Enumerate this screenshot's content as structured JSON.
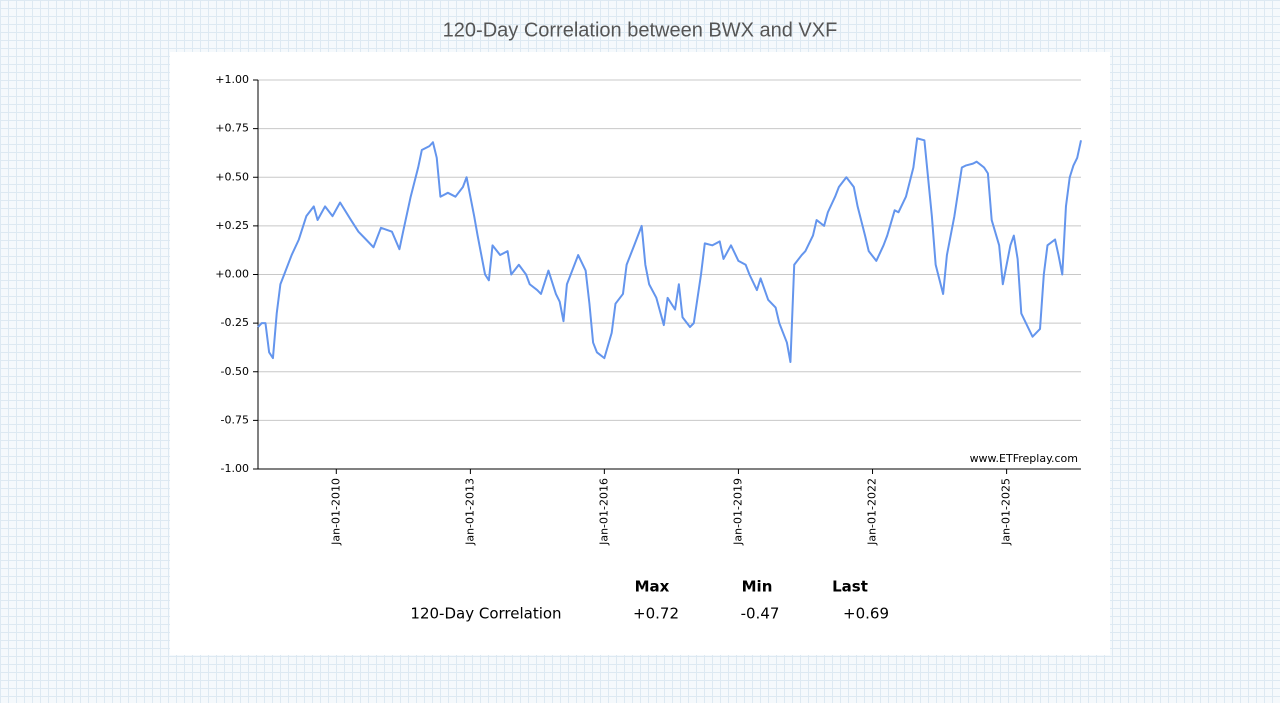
{
  "chart_data": {
    "type": "line",
    "title": "120-Day Correlation between BWX and VXF",
    "color": "#6495ed",
    "grid": true,
    "watermark": "www.ETFreplay.com",
    "xlim": [
      "2008-04-01",
      "2026-09-01"
    ],
    "xticks": [
      {
        "value": "2010-01-01",
        "label": "Jan-01-2010"
      },
      {
        "value": "2013-01-01",
        "label": "Jan-01-2013"
      },
      {
        "value": "2016-01-01",
        "label": "Jan-01-2016"
      },
      {
        "value": "2019-01-01",
        "label": "Jan-01-2019"
      },
      {
        "value": "2022-01-01",
        "label": "Jan-01-2022"
      },
      {
        "value": "2025-01-01",
        "label": "Jan-01-2025"
      }
    ],
    "ylim": [
      -1,
      1
    ],
    "yticks": [
      {
        "value": -1,
        "label": "-1.00"
      },
      {
        "value": -0.75,
        "label": "-0.75"
      },
      {
        "value": -0.5,
        "label": "-0.50"
      },
      {
        "value": -0.25,
        "label": "-0.25"
      },
      {
        "value": 0,
        "label": "+0.00"
      },
      {
        "value": 0.25,
        "label": "+0.25"
      },
      {
        "value": 0.5,
        "label": "+0.50"
      },
      {
        "value": 0.75,
        "label": "+0.75"
      },
      {
        "value": 1,
        "label": "+1.00"
      }
    ],
    "x": [
      "2008-04-01",
      "2008-05-01",
      "2008-06-01",
      "2008-07-01",
      "2008-08-01",
      "2008-09-01",
      "2008-10-01",
      "2008-11-01",
      "2009-01-01",
      "2009-03-01",
      "2009-05-01",
      "2009-07-01",
      "2009-08-01",
      "2009-10-01",
      "2009-12-01",
      "2010-02-01",
      "2010-05-01",
      "2010-07-01",
      "2010-09-01",
      "2010-11-01",
      "2011-01-01",
      "2011-04-01",
      "2011-06-01",
      "2011-07-01",
      "2011-09-01",
      "2011-11-01",
      "2011-12-01",
      "2012-02-01",
      "2012-03-01",
      "2012-04-01",
      "2012-05-01",
      "2012-07-01",
      "2012-09-01",
      "2012-11-01",
      "2012-12-01",
      "2013-02-01",
      "2013-03-01",
      "2013-05-01",
      "2013-06-01",
      "2013-07-01",
      "2013-09-01",
      "2013-11-01",
      "2013-12-01",
      "2014-02-01",
      "2014-04-01",
      "2014-05-01",
      "2014-07-01",
      "2014-08-01",
      "2014-10-01",
      "2014-12-01",
      "2015-01-01",
      "2015-02-01",
      "2015-03-01",
      "2015-04-01",
      "2015-06-01",
      "2015-08-01",
      "2015-09-01",
      "2015-10-01",
      "2015-11-01",
      "2016-01-01",
      "2016-03-01",
      "2016-04-01",
      "2016-06-01",
      "2016-07-01",
      "2016-09-01",
      "2016-11-01",
      "2016-12-01",
      "2017-01-01",
      "2017-03-01",
      "2017-05-01",
      "2017-06-01",
      "2017-08-01",
      "2017-09-01",
      "2017-10-01",
      "2017-12-01",
      "2018-01-01",
      "2018-03-01",
      "2018-04-01",
      "2018-06-01",
      "2018-08-01",
      "2018-09-01",
      "2018-11-01",
      "2019-01-01",
      "2019-03-01",
      "2019-04-01",
      "2019-06-01",
      "2019-07-01",
      "2019-09-01",
      "2019-11-01",
      "2019-12-01",
      "2020-02-01",
      "2020-03-01",
      "2020-04-01",
      "2020-06-01",
      "2020-07-01",
      "2020-09-01",
      "2020-10-01",
      "2020-12-01",
      "2021-01-01",
      "2021-03-01",
      "2021-04-01",
      "2021-06-01",
      "2021-08-01",
      "2021-09-01",
      "2021-11-01",
      "2021-12-01",
      "2022-02-01",
      "2022-04-01",
      "2022-05-01",
      "2022-07-01",
      "2022-08-01",
      "2022-10-01",
      "2022-12-01",
      "2023-01-01",
      "2023-03-01",
      "2023-05-01",
      "2023-06-01",
      "2023-08-01",
      "2023-09-01",
      "2023-11-01",
      "2024-01-01",
      "2024-02-01",
      "2024-04-01",
      "2024-05-01",
      "2024-07-01",
      "2024-08-01",
      "2024-09-01",
      "2024-11-01",
      "2024-12-01",
      "2025-02-01",
      "2025-03-01",
      "2025-04-01",
      "2025-05-01",
      "2025-07-01",
      "2025-08-01",
      "2025-10-01",
      "2025-11-01",
      "2025-12-01",
      "2026-02-01",
      "2026-03-01",
      "2026-04-01",
      "2026-05-01",
      "2026-06-01",
      "2026-07-01",
      "2026-08-01",
      "2026-09-01"
    ],
    "values": [
      -0.27,
      -0.25,
      -0.25,
      -0.4,
      -0.43,
      -0.2,
      -0.05,
      0.0,
      0.1,
      0.18,
      0.3,
      0.35,
      0.28,
      0.35,
      0.3,
      0.37,
      0.28,
      0.22,
      0.18,
      0.14,
      0.24,
      0.22,
      0.13,
      0.22,
      0.4,
      0.55,
      0.64,
      0.66,
      0.68,
      0.6,
      0.4,
      0.42,
      0.4,
      0.45,
      0.5,
      0.3,
      0.2,
      0.0,
      -0.03,
      0.15,
      0.1,
      0.12,
      0.0,
      0.05,
      0.0,
      -0.05,
      -0.08,
      -0.1,
      0.02,
      -0.1,
      -0.14,
      -0.24,
      -0.05,
      0.0,
      0.1,
      0.02,
      -0.15,
      -0.35,
      -0.4,
      -0.43,
      -0.3,
      -0.15,
      -0.1,
      0.05,
      0.15,
      0.25,
      0.05,
      -0.05,
      -0.12,
      -0.26,
      -0.12,
      -0.18,
      -0.05,
      -0.22,
      -0.27,
      -0.25,
      0.0,
      0.16,
      0.15,
      0.17,
      0.08,
      0.15,
      0.07,
      0.05,
      0.0,
      -0.08,
      -0.02,
      -0.13,
      -0.17,
      -0.25,
      -0.35,
      -0.45,
      0.05,
      0.1,
      0.12,
      0.2,
      0.28,
      0.25,
      0.32,
      0.4,
      0.45,
      0.5,
      0.45,
      0.35,
      0.2,
      0.12,
      0.07,
      0.15,
      0.2,
      0.33,
      0.32,
      0.4,
      0.55,
      0.7,
      0.69,
      0.3,
      0.05,
      -0.1,
      0.1,
      0.3,
      0.55,
      0.56,
      0.57,
      0.58,
      0.55,
      0.52,
      0.28,
      0.15,
      -0.05,
      0.15,
      0.2,
      0.08,
      -0.2,
      -0.28,
      -0.32,
      -0.28,
      0.0,
      0.15,
      0.18,
      0.1,
      0.0,
      0.35,
      0.5,
      0.56,
      0.6,
      0.69
    ]
  },
  "table": {
    "columns": [
      "Max",
      "Min",
      "Last"
    ],
    "rows": [
      {
        "label": "120-Day Correlation",
        "values": [
          "+0.72",
          "-0.47",
          "+0.69"
        ]
      }
    ]
  }
}
